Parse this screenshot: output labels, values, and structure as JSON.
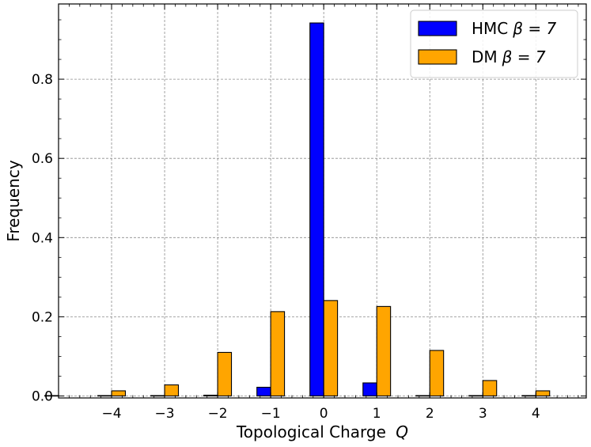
{
  "chart_data": {
    "type": "bar",
    "title": "",
    "xlabel": "Topological Charge",
    "xlabel_var": "Q",
    "ylabel": "Frequency",
    "x": [
      -5,
      -4,
      -3,
      -2,
      -1,
      0,
      1,
      2,
      3,
      4
    ],
    "x_tick_labels": [
      "−4",
      "−3",
      "−2",
      "−1",
      "0",
      "1",
      "2",
      "3",
      "4"
    ],
    "x_tick_values": [
      -4,
      -3,
      -2,
      -1,
      0,
      1,
      2,
      3,
      4
    ],
    "y_tick_labels": [
      "0.0",
      "0.2",
      "0.4",
      "0.6",
      "0.8"
    ],
    "y_tick_values": [
      0.0,
      0.2,
      0.4,
      0.6,
      0.8
    ],
    "xlim": [
      -5.0,
      4.95
    ],
    "ylim": [
      -0.005,
      0.99
    ],
    "grid": true,
    "legend_position": "top-right",
    "series": [
      {
        "name": "HMC",
        "legend_math": "β = 7",
        "color": "#0000ff",
        "values": [
          0.001,
          0.001,
          0.001,
          0.002,
          0.022,
          0.942,
          0.033,
          0.001,
          0.001,
          0.001
        ]
      },
      {
        "name": "DM",
        "legend_math": "β = 7",
        "color": "#ffa500",
        "values": [
          0.0,
          0.013,
          0.028,
          0.11,
          0.213,
          0.241,
          0.226,
          0.115,
          0.039,
          0.013
        ]
      }
    ]
  }
}
